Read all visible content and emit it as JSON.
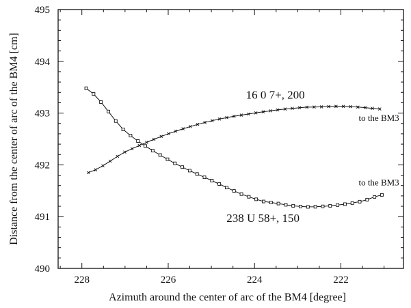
{
  "chart_data": {
    "type": "line",
    "xlabel": "Azimuth around the center of arc of the BM4  [degree]",
    "ylabel": "Distance from the center of arc of the BM4  [cm]",
    "xlim": [
      228.55,
      220.55
    ],
    "ylim": [
      490,
      495
    ],
    "x_reversed": true,
    "x_ticks": [
      228,
      226,
      224,
      222
    ],
    "y_ticks": [
      490,
      491,
      492,
      493,
      494,
      495
    ],
    "grid": false,
    "series": [
      {
        "name": "16 O 7+, 200",
        "marker": "x",
        "x": [
          227.85,
          227.0,
          226.0,
          225.0,
          224.0,
          223.0,
          222.5,
          222.0,
          221.5,
          221.1
        ],
        "y": [
          491.85,
          492.25,
          492.6,
          492.85,
          493.0,
          493.1,
          493.12,
          493.13,
          493.11,
          493.08
        ]
      },
      {
        "name": "238 U 58+, 150",
        "marker": "square",
        "x": [
          227.9,
          227.0,
          226.0,
          225.0,
          224.0,
          223.5,
          223.0,
          222.6,
          222.0,
          221.5,
          221.05
        ],
        "y": [
          493.48,
          492.65,
          492.1,
          491.7,
          491.35,
          491.26,
          491.2,
          491.19,
          491.23,
          491.3,
          491.42
        ]
      }
    ],
    "annotations": [
      {
        "text": "16 0 7+, 200",
        "x": 224.2,
        "y": 493.28
      },
      {
        "text": "to the BM3",
        "x": 220.65,
        "y": 492.85
      },
      {
        "text": "to the BM3",
        "x": 220.65,
        "y": 491.6
      },
      {
        "text": "238 U 58+, 150",
        "x": 224.65,
        "y": 490.9
      }
    ]
  }
}
